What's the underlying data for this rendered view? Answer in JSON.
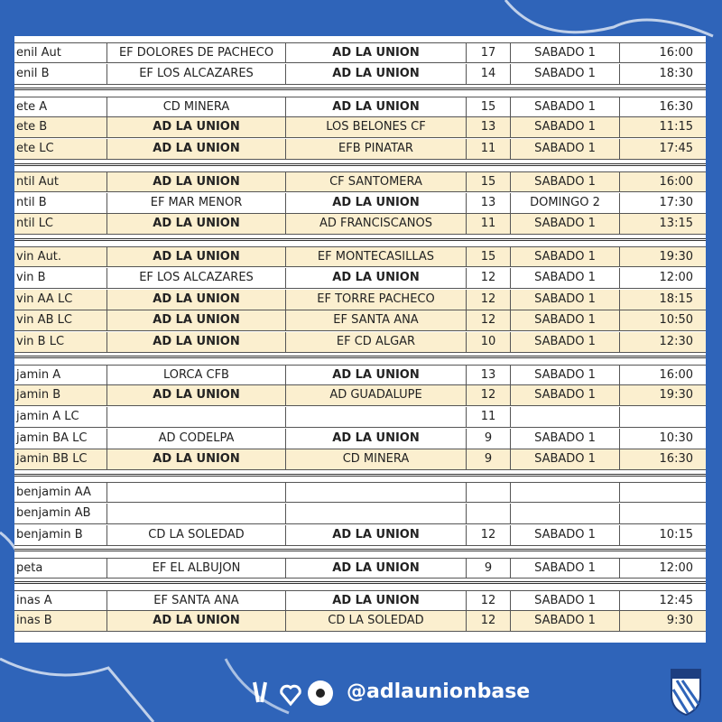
{
  "footer": {
    "handle": "@adlaunionbase"
  },
  "table": {
    "groups": [
      {
        "rows": [
          {
            "cells": [
              "enil Aut",
              "EF DOLORES DE PACHECO",
              "AD LA UNION",
              17,
              "SABADO 1",
              "16:00"
            ],
            "highlight": false,
            "bold": 2
          },
          {
            "cells": [
              "enil B",
              "EF LOS ALCAZARES",
              "AD LA UNION",
              14,
              "SABADO 1",
              "18:30"
            ],
            "highlight": false,
            "bold": 2
          }
        ]
      },
      {
        "rows": [
          {
            "cells": [
              "ete A",
              "CD MINERA",
              "AD LA UNION",
              15,
              "SABADO 1",
              "16:30"
            ],
            "highlight": false,
            "bold": 2
          },
          {
            "cells": [
              "ete B",
              "AD LA UNION",
              "LOS BELONES CF",
              13,
              "SABADO 1",
              "11:15"
            ],
            "highlight": true,
            "bold": 1
          },
          {
            "cells": [
              "ete LC",
              "AD LA UNION",
              "EFB PINATAR",
              11,
              "SABADO 1",
              "17:45"
            ],
            "highlight": true,
            "bold": 1
          }
        ]
      },
      {
        "rows": [
          {
            "cells": [
              "ntil Aut",
              "AD LA UNION",
              "CF SANTOMERA",
              15,
              "SABADO 1",
              "16:00"
            ],
            "highlight": true,
            "bold": 1
          },
          {
            "cells": [
              "ntil B",
              "EF MAR MENOR",
              "AD LA UNION",
              13,
              "DOMINGO 2",
              "17:30"
            ],
            "highlight": false,
            "bold": 2
          },
          {
            "cells": [
              "ntil LC",
              "AD LA UNION",
              "AD FRANCISCANOS",
              11,
              "SABADO 1",
              "13:15"
            ],
            "highlight": true,
            "bold": 1
          }
        ]
      },
      {
        "rows": [
          {
            "cells": [
              "vin Aut.",
              "AD LA UNION",
              "EF MONTECASILLAS",
              15,
              "SABADO 1",
              "19:30"
            ],
            "highlight": true,
            "bold": 1
          },
          {
            "cells": [
              "vin B",
              "EF LOS ALCAZARES",
              "AD LA UNION",
              12,
              "SABADO 1",
              "12:00"
            ],
            "highlight": false,
            "bold": 2
          },
          {
            "cells": [
              "vin AA LC",
              "AD LA UNION",
              "EF TORRE PACHECO",
              12,
              "SABADO 1",
              "18:15"
            ],
            "highlight": true,
            "bold": 1
          },
          {
            "cells": [
              "vin AB LC",
              "AD LA UNION",
              "EF SANTA ANA",
              12,
              "SABADO 1",
              "10:50"
            ],
            "highlight": true,
            "bold": 1
          },
          {
            "cells": [
              "vin B LC",
              "AD LA UNION",
              "EF CD ALGAR",
              10,
              "SABADO 1",
              "12:30"
            ],
            "highlight": true,
            "bold": 1
          }
        ]
      },
      {
        "rows": [
          {
            "cells": [
              "jamin A",
              "LORCA CFB",
              "AD LA UNION",
              13,
              "SABADO 1",
              "16:00"
            ],
            "highlight": false,
            "bold": 2
          },
          {
            "cells": [
              "jamin B",
              "AD LA UNION",
              "AD GUADALUPE",
              12,
              "SABADO 1",
              "19:30"
            ],
            "highlight": true,
            "bold": 1
          },
          {
            "cells": [
              "jamin A LC",
              null,
              null,
              11,
              null,
              null
            ],
            "highlight": false,
            "bold": null
          },
          {
            "cells": [
              "jamin BA LC",
              "AD CODELPA",
              "AD LA UNION",
              9,
              "SABADO 1",
              "10:30"
            ],
            "highlight": false,
            "bold": 2
          },
          {
            "cells": [
              "jamin BB LC",
              "AD LA UNION",
              "CD MINERA",
              9,
              "SABADO 1",
              "16:30"
            ],
            "highlight": true,
            "bold": 1
          }
        ]
      },
      {
        "rows": [
          {
            "cells": [
              "benjamin AA",
              null,
              null,
              null,
              null,
              null
            ],
            "highlight": false,
            "bold": null
          },
          {
            "cells": [
              "benjamin AB",
              null,
              null,
              null,
              null,
              null
            ],
            "highlight": false,
            "bold": null
          },
          {
            "cells": [
              "benjamin B",
              "CD LA SOLEDAD",
              "AD LA UNION",
              12,
              "SABADO 1",
              "10:15"
            ],
            "highlight": false,
            "bold": 2
          }
        ]
      },
      {
        "rows": [
          {
            "cells": [
              "peta",
              "EF EL ALBUJON",
              "AD LA UNION",
              9,
              "SABADO 1",
              "12:00"
            ],
            "highlight": false,
            "bold": 2
          }
        ]
      },
      {
        "rows": [
          {
            "cells": [
              "inas A",
              "EF SANTA ANA",
              "AD LA UNION",
              12,
              "SABADO 1",
              "12:45"
            ],
            "highlight": false,
            "bold": 2
          },
          {
            "cells": [
              "inas B",
              "AD LA UNION",
              "CD LA SOLEDAD",
              12,
              "SABADO 1",
              "9:30"
            ],
            "highlight": true,
            "bold": 1
          }
        ]
      }
    ]
  }
}
